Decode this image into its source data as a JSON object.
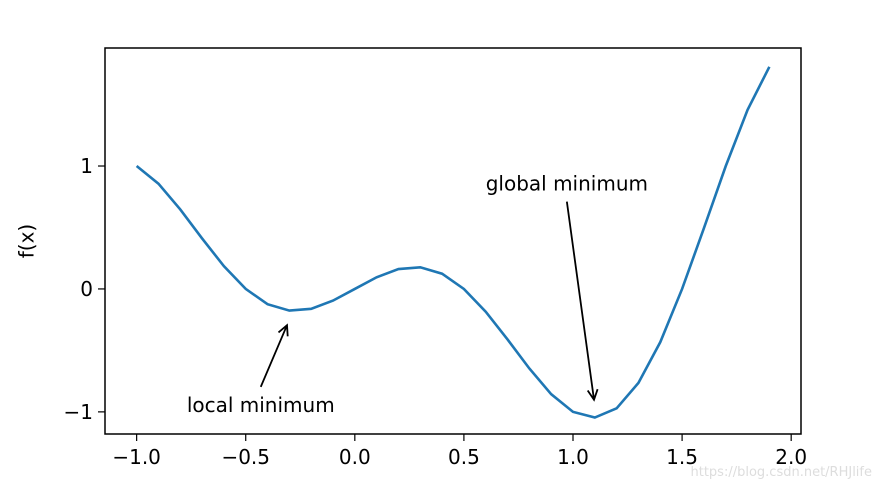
{
  "chart_data": {
    "type": "line",
    "ylabel": "f(x)",
    "x": [
      -1.0,
      -0.9,
      -0.8,
      -0.7,
      -0.6,
      -0.5,
      -0.4,
      -0.3,
      -0.2,
      -0.1,
      0.0,
      0.1,
      0.2,
      0.3,
      0.4,
      0.5,
      0.6,
      0.7,
      0.8,
      0.9,
      1.0,
      1.1,
      1.2,
      1.3,
      1.4,
      1.5,
      1.6,
      1.7,
      1.8,
      1.9
    ],
    "values": [
      1.0,
      0.856,
      0.647,
      0.411,
      0.185,
      0.0,
      -0.124,
      -0.176,
      -0.162,
      -0.095,
      0.0,
      0.095,
      0.162,
      0.176,
      0.124,
      0.0,
      -0.185,
      -0.411,
      -0.647,
      -0.856,
      -1.0,
      -1.046,
      -0.971,
      -0.764,
      -0.433,
      0.0,
      0.494,
      0.999,
      1.456,
      1.807
    ],
    "color": "#1f77b4",
    "xlim": [
      -1.145,
      2.045
    ],
    "ylim": [
      -1.18,
      1.96
    ],
    "xticks": [
      {
        "value": -1,
        "label": "−1.0"
      },
      {
        "value": -0.5,
        "label": "−0.5"
      },
      {
        "value": 0,
        "label": "0.0"
      },
      0.5,
      {
        "value": 1,
        "label": "1.0"
      },
      1.5,
      {
        "value": 2,
        "label": "2.0"
      }
    ],
    "yticks": [
      {
        "value": -1,
        "label": "−1"
      },
      0,
      1
    ],
    "annotations": [
      {
        "text": "local minimum",
        "xy": [
          -0.3,
          -0.25
        ],
        "xytext": [
          -0.77,
          -1.0
        ]
      },
      {
        "text": "global minimum",
        "xy": [
          1.1,
          -0.95
        ],
        "xytext": [
          0.6,
          0.8
        ]
      }
    ],
    "watermark": "https://blog.csdn.net/RHJlife"
  }
}
